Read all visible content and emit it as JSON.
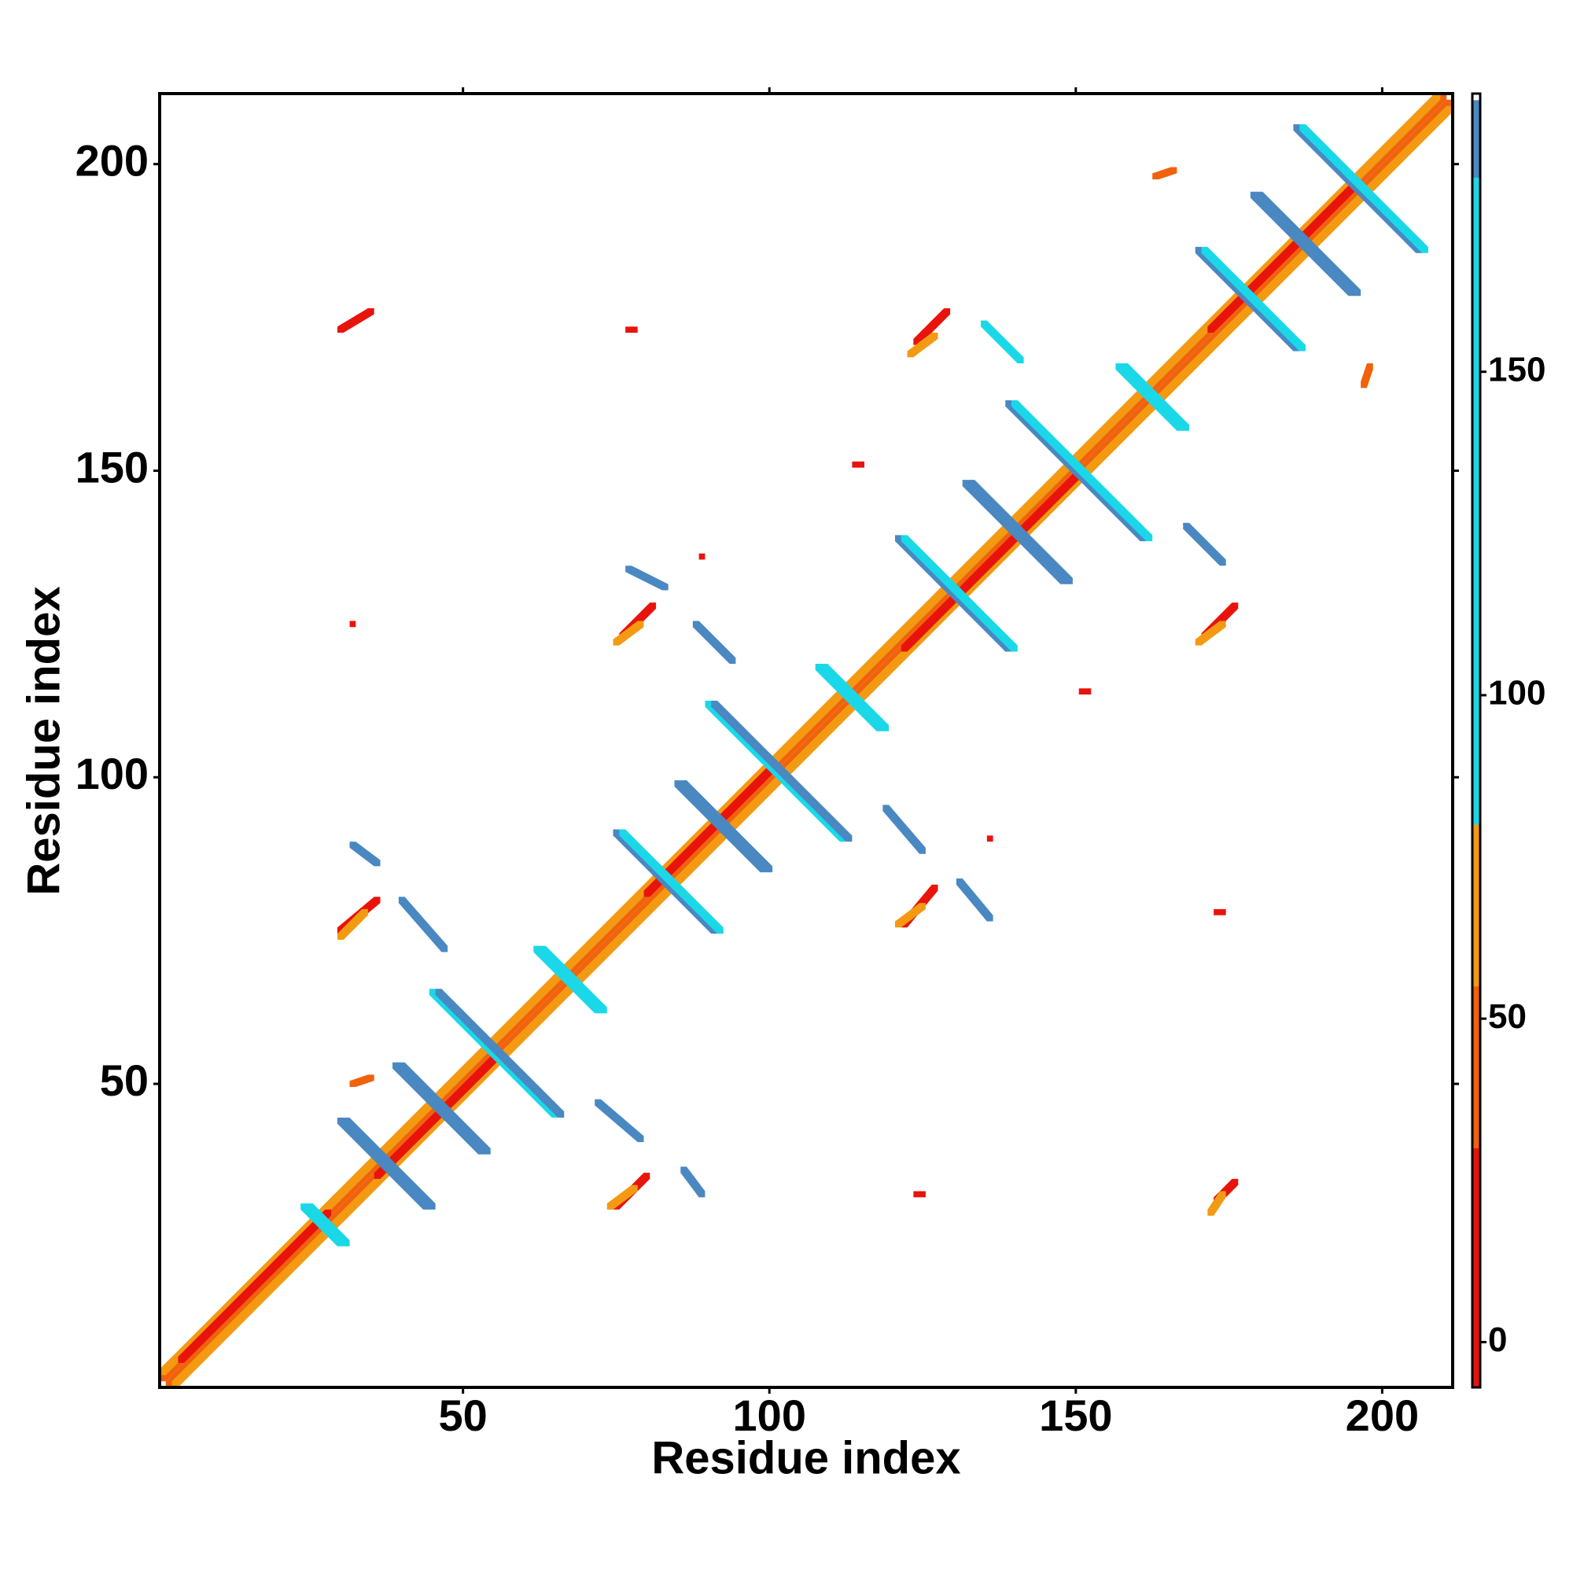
{
  "chart_data": {
    "type": "heatmap",
    "xlabel": "Residue index",
    "ylabel": "Residue index",
    "xlim": [
      0.5,
      211.5
    ],
    "ylim": [
      0.5,
      211.5
    ],
    "xticks": [
      50,
      100,
      150,
      200
    ],
    "yticks": [
      50,
      100,
      150,
      200
    ],
    "colorbar": {
      "ticks": [
        0,
        50,
        100,
        150
      ],
      "bins": [
        -7,
        30,
        55,
        80,
        180,
        192,
        193
      ],
      "colors": [
        "#e8140c",
        "#f0620c",
        "#f39a12",
        "#1ad8e8",
        "#4a88c2",
        "#ffffff"
      ]
    },
    "segments": [
      {
        "x": [
          1,
          210
        ],
        "y": [
          2,
          211
        ],
        "value": 40
      },
      {
        "x": [
          2,
          211
        ],
        "y": [
          1,
          210
        ],
        "value": 40
      },
      {
        "x": [
          1,
          209
        ],
        "y": [
          3,
          211
        ],
        "value": 65
      },
      {
        "x": [
          3,
          211
        ],
        "y": [
          1,
          209
        ],
        "value": 65
      },
      {
        "x": [
          4,
          28
        ],
        "y": [
          5,
          29
        ],
        "value": 10
      },
      {
        "x": [
          36,
          55
        ],
        "y": [
          35,
          54
        ],
        "value": 10
      },
      {
        "x": [
          80,
          100
        ],
        "y": [
          81,
          101
        ],
        "value": 10
      },
      {
        "x": [
          122,
          150
        ],
        "y": [
          121,
          149
        ],
        "value": 10
      },
      {
        "x": [
          172,
          195
        ],
        "y": [
          173,
          196
        ],
        "value": 10
      },
      {
        "x": [
          30,
          44
        ],
        "y": [
          44,
          30
        ],
        "value": 185
      },
      {
        "x": [
          31,
          45
        ],
        "y": [
          44,
          30
        ],
        "value": 185
      },
      {
        "x": [
          39,
          53
        ],
        "y": [
          53,
          39
        ],
        "value": 185
      },
      {
        "x": [
          40,
          54
        ],
        "y": [
          53,
          39
        ],
        "value": 185
      },
      {
        "x": [
          45,
          65
        ],
        "y": [
          65,
          45
        ],
        "value": 120
      },
      {
        "x": [
          46,
          66
        ],
        "y": [
          65,
          45
        ],
        "value": 185
      },
      {
        "x": [
          24,
          30
        ],
        "y": [
          30,
          24
        ],
        "value": 120
      },
      {
        "x": [
          25,
          31
        ],
        "y": [
          30,
          24
        ],
        "value": 120
      },
      {
        "x": [
          62,
          72
        ],
        "y": [
          72,
          62
        ],
        "value": 120
      },
      {
        "x": [
          63,
          73
        ],
        "y": [
          72,
          62
        ],
        "value": 120
      },
      {
        "x": [
          75,
          91
        ],
        "y": [
          91,
          75
        ],
        "value": 185
      },
      {
        "x": [
          76,
          92
        ],
        "y": [
          91,
          75
        ],
        "value": 120
      },
      {
        "x": [
          85,
          99
        ],
        "y": [
          99,
          85
        ],
        "value": 185
      },
      {
        "x": [
          86,
          100
        ],
        "y": [
          99,
          85
        ],
        "value": 185
      },
      {
        "x": [
          90,
          112
        ],
        "y": [
          112,
          90
        ],
        "value": 120
      },
      {
        "x": [
          91,
          113
        ],
        "y": [
          112,
          90
        ],
        "value": 185
      },
      {
        "x": [
          108,
          118
        ],
        "y": [
          118,
          108
        ],
        "value": 120
      },
      {
        "x": [
          109,
          119
        ],
        "y": [
          118,
          108
        ],
        "value": 120
      },
      {
        "x": [
          121,
          139
        ],
        "y": [
          139,
          121
        ],
        "value": 185
      },
      {
        "x": [
          122,
          140
        ],
        "y": [
          139,
          121
        ],
        "value": 120
      },
      {
        "x": [
          132,
          148
        ],
        "y": [
          148,
          132
        ],
        "value": 185
      },
      {
        "x": [
          133,
          149
        ],
        "y": [
          148,
          132
        ],
        "value": 185
      },
      {
        "x": [
          139,
          161
        ],
        "y": [
          161,
          139
        ],
        "value": 185
      },
      {
        "x": [
          140,
          162
        ],
        "y": [
          161,
          139
        ],
        "value": 120
      },
      {
        "x": [
          157,
          167
        ],
        "y": [
          167,
          157
        ],
        "value": 120
      },
      {
        "x": [
          158,
          168
        ],
        "y": [
          167,
          157
        ],
        "value": 120
      },
      {
        "x": [
          170,
          186
        ],
        "y": [
          186,
          170
        ],
        "value": 185
      },
      {
        "x": [
          171,
          187
        ],
        "y": [
          186,
          170
        ],
        "value": 120
      },
      {
        "x": [
          179,
          195
        ],
        "y": [
          195,
          179
        ],
        "value": 185
      },
      {
        "x": [
          180,
          196
        ],
        "y": [
          195,
          179
        ],
        "value": 185
      },
      {
        "x": [
          186,
          206
        ],
        "y": [
          206,
          186
        ],
        "value": 185
      },
      {
        "x": [
          187,
          207
        ],
        "y": [
          206,
          186
        ],
        "value": 120
      },
      {
        "x": [
          40,
          47
        ],
        "y": [
          80,
          72
        ],
        "value": 185
      },
      {
        "x": [
          72,
          79
        ],
        "y": [
          47,
          41
        ],
        "value": 185
      },
      {
        "x": [
          86,
          89
        ],
        "y": [
          36,
          32
        ],
        "value": 185
      },
      {
        "x": [
          88,
          94
        ],
        "y": [
          125,
          119
        ],
        "value": 185
      },
      {
        "x": [
          119,
          125
        ],
        "y": [
          95,
          88
        ],
        "value": 185
      },
      {
        "x": [
          131,
          136
        ],
        "y": [
          83,
          77
        ],
        "value": 185
      },
      {
        "x": [
          135,
          141
        ],
        "y": [
          174,
          168
        ],
        "value": 120
      },
      {
        "x": [
          168,
          174
        ],
        "y": [
          141,
          135
        ],
        "value": 185
      },
      {
        "x": [
          32,
          36
        ],
        "y": [
          89,
          86
        ],
        "value": 185
      },
      {
        "x": [
          77,
          83
        ],
        "y": [
          134,
          131
        ],
        "value": 185
      },
      {
        "x": [
          30,
          36
        ],
        "y": [
          75,
          80
        ],
        "value": 10
      },
      {
        "x": [
          30,
          34
        ],
        "y": [
          74,
          78
        ],
        "value": 65
      },
      {
        "x": [
          75,
          80
        ],
        "y": [
          30,
          35
        ],
        "value": 10
      },
      {
        "x": [
          74,
          78
        ],
        "y": [
          30,
          33
        ],
        "value": 65
      },
      {
        "x": [
          76,
          81
        ],
        "y": [
          123,
          128
        ],
        "value": 10
      },
      {
        "x": [
          75,
          79
        ],
        "y": [
          122,
          125
        ],
        "value": 65
      },
      {
        "x": [
          122,
          127
        ],
        "y": [
          76,
          82
        ],
        "value": 10
      },
      {
        "x": [
          121,
          125
        ],
        "y": [
          76,
          79
        ],
        "value": 65
      },
      {
        "x": [
          124,
          129
        ],
        "y": [
          171,
          176
        ],
        "value": 10
      },
      {
        "x": [
          123,
          127
        ],
        "y": [
          169,
          172
        ],
        "value": 65
      },
      {
        "x": [
          171,
          176
        ],
        "y": [
          123,
          128
        ],
        "value": 10
      },
      {
        "x": [
          170,
          174
        ],
        "y": [
          122,
          125
        ],
        "value": 65
      },
      {
        "x": [
          173,
          176
        ],
        "y": [
          31,
          34
        ],
        "value": 10
      },
      {
        "x": [
          172,
          174
        ],
        "y": [
          29,
          32
        ],
        "value": 65
      },
      {
        "x": [
          30,
          35
        ],
        "y": [
          173,
          176
        ],
        "value": 10
      },
      {
        "x": [
          163,
          166
        ],
        "y": [
          198,
          199
        ],
        "value": 40
      },
      {
        "x": [
          197,
          198
        ],
        "y": [
          164,
          167
        ],
        "value": 40
      },
      {
        "x": [
          77,
          78
        ],
        "y": [
          173,
          173
        ],
        "value": 10
      },
      {
        "x": [
          114,
          115
        ],
        "y": [
          151,
          151
        ],
        "value": 10
      },
      {
        "x": [
          151,
          152
        ],
        "y": [
          114,
          114
        ],
        "value": 10
      },
      {
        "x": [
          173,
          174
        ],
        "y": [
          78,
          78
        ],
        "value": 10
      },
      {
        "x": [
          124,
          125
        ],
        "y": [
          32,
          32
        ],
        "value": 10
      },
      {
        "x": [
          32,
          32
        ],
        "y": [
          125,
          125
        ],
        "value": 10
      },
      {
        "x": [
          136,
          136
        ],
        "y": [
          90,
          90
        ],
        "value": 10
      },
      {
        "x": [
          89,
          89
        ],
        "y": [
          136,
          136
        ],
        "value": 10
      },
      {
        "x": [
          32,
          35
        ],
        "y": [
          50,
          51
        ],
        "value": 40
      }
    ]
  }
}
